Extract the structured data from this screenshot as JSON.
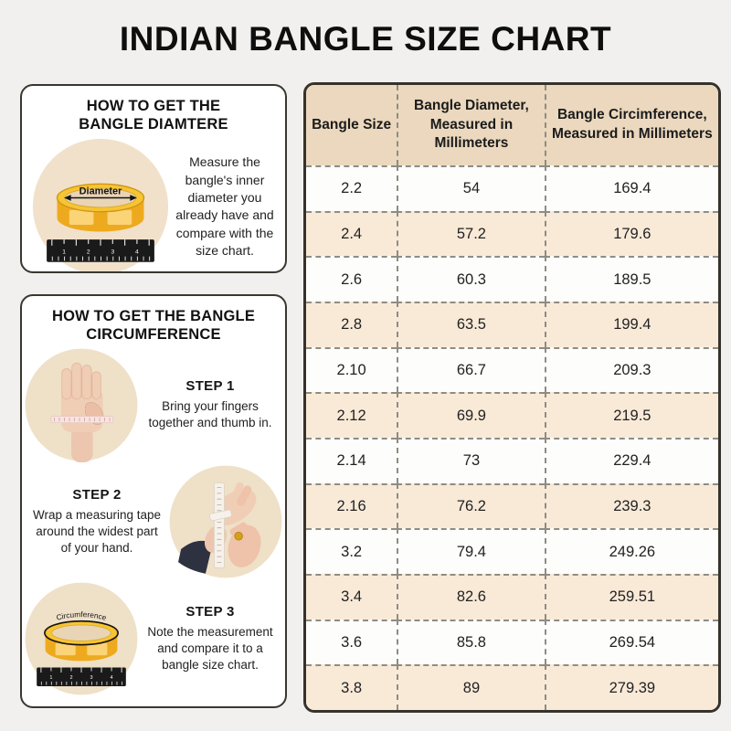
{
  "page": {
    "title": "INDIAN BANGLE SIZE CHART"
  },
  "diameter_box": {
    "title_line1": "HOW TO GET THE",
    "title_line2": "BANGLE DIAMTERE",
    "image_label": "Diameter",
    "body": "Measure the bangle's inner diameter you already have and compare with the size chart."
  },
  "circumference_box": {
    "title_line1": "HOW TO GET THE BANGLE",
    "title_line2": "CIRCUMFERENCE",
    "image_label": "Circumference",
    "steps": [
      {
        "label": "STEP 1",
        "text": "Bring your fingers together and thumb in."
      },
      {
        "label": "STEP 2",
        "text": "Wrap a measuring tape around the widest part of your hand."
      },
      {
        "label": "STEP 3",
        "text": "Note the measurement and compare it to a bangle size chart."
      }
    ]
  },
  "chart_data": {
    "type": "table",
    "columns": [
      "Bangle Size",
      "Bangle Diameter, Measured in Millimeters",
      "Bangle Circimference, Measured in Millimeters"
    ],
    "rows": [
      [
        "2.2",
        "54",
        "169.4"
      ],
      [
        "2.4",
        "57.2",
        "179.6"
      ],
      [
        "2.6",
        "60.3",
        "189.5"
      ],
      [
        "2.8",
        "63.5",
        "199.4"
      ],
      [
        "2.10",
        "66.7",
        "209.3"
      ],
      [
        "2.12",
        "69.9",
        "219.5"
      ],
      [
        "2.14",
        "73",
        "229.4"
      ],
      [
        "2.16",
        "76.2",
        "239.3"
      ],
      [
        "3.2",
        "79.4",
        "249.26"
      ],
      [
        "3.4",
        "82.6",
        "259.51"
      ],
      [
        "3.6",
        "85.8",
        "269.54"
      ],
      [
        "3.8",
        "89",
        "279.39"
      ]
    ]
  },
  "colors": {
    "page_background": "#f1f0ee",
    "card_background": "#ffffff",
    "dark_border": "#35322b",
    "table_header_bg": "#ebd8be",
    "table_alt_row_bg": "#f9ead8",
    "dashed_border": "#8e8c83",
    "illustration_circle_bg": "#f1e1ca",
    "bangle_gold": "#f2b42d",
    "ruler_black": "#1a1a1a"
  }
}
